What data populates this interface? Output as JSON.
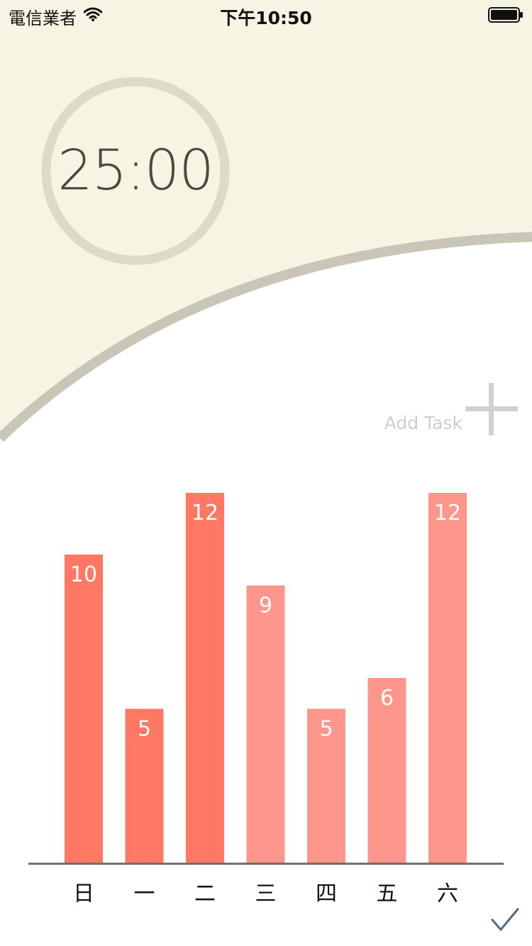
{
  "status_bar": {
    "carrier": "電信業者",
    "time": "下午10:50",
    "wifi_icon": "wifi-icon",
    "battery_icon": "battery-full-icon"
  },
  "timer": {
    "display": "25:00",
    "ring_color": "#dddbc8",
    "text_color": "#4b4a40"
  },
  "header": {
    "background_color": "#f6f4e2",
    "wave_stroke_color": "#cac6b7"
  },
  "add_task": {
    "label": "Add Task",
    "icon": "plus-icon"
  },
  "chart_data": {
    "type": "bar",
    "categories": [
      "日",
      "一",
      "二",
      "三",
      "四",
      "五",
      "六"
    ],
    "values": [
      10,
      5,
      12,
      9,
      5,
      6,
      12
    ],
    "title": "",
    "xlabel": "",
    "ylabel": "",
    "ylim": [
      0,
      12
    ],
    "grid": false,
    "legend": "none",
    "bar_colors": [
      "#ff7863",
      "#ff7863",
      "#ff7863",
      "#ff968b",
      "#ff968b",
      "#ff968b",
      "#ff968b"
    ],
    "data_labels": true
  },
  "footer": {
    "confirm_icon": "checkmark-icon",
    "confirm_color": "#4f6c86"
  }
}
